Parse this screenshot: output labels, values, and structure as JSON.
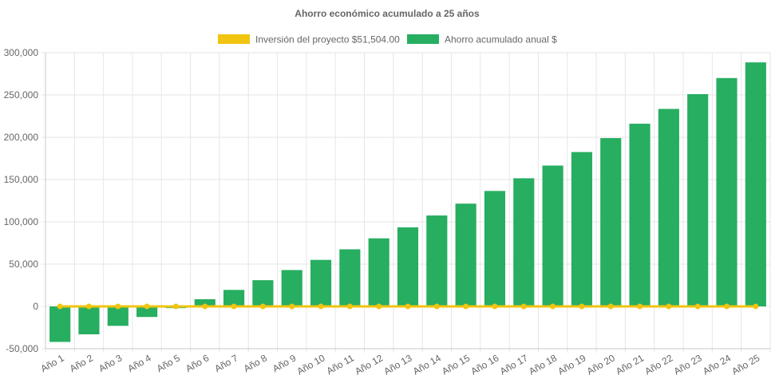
{
  "chart_data": {
    "type": "bar",
    "title": "Ahorro económico acumulado a 25 años",
    "legend_position": "top",
    "grid": true,
    "ylim": [
      -50000,
      300000
    ],
    "yticks": [
      -50000,
      0,
      50000,
      100000,
      150000,
      200000,
      250000,
      300000
    ],
    "ytick_labels": [
      "-50,000",
      "0",
      "50,000",
      "100,000",
      "150,000",
      "200,000",
      "250,000",
      "300,000"
    ],
    "categories": [
      "Año 1",
      "Año 2",
      "Año 3",
      "Año 4",
      "Año 5",
      "Año 6",
      "Año 7",
      "Año 8",
      "Año 9",
      "Año 10",
      "Año 11",
      "Año 12",
      "Año 13",
      "Año 14",
      "Año 15",
      "Año 16",
      "Año 17",
      "Año 18",
      "Año 19",
      "Año 20",
      "Año 21",
      "Año 22",
      "Año 23",
      "Año 24",
      "Año 25"
    ],
    "series": [
      {
        "name": "Inversión del proyecto $51,504.00",
        "type": "line",
        "color": "#f1c40f",
        "values": [
          0,
          0,
          0,
          0,
          0,
          0,
          0,
          0,
          0,
          0,
          0,
          0,
          0,
          0,
          0,
          0,
          0,
          0,
          0,
          0,
          0,
          0,
          0,
          0,
          0
        ]
      },
      {
        "name": "Ahorro acumulado anual $",
        "type": "bar",
        "color": "#27ae60",
        "values": [
          -42000,
          -33000,
          -23000,
          -12500,
          -2000,
          8500,
          19500,
          31000,
          43000,
          55000,
          67500,
          80500,
          93500,
          107500,
          121500,
          136500,
          151500,
          166500,
          182500,
          199000,
          216000,
          233500,
          251000,
          270000,
          288500
        ]
      }
    ]
  }
}
